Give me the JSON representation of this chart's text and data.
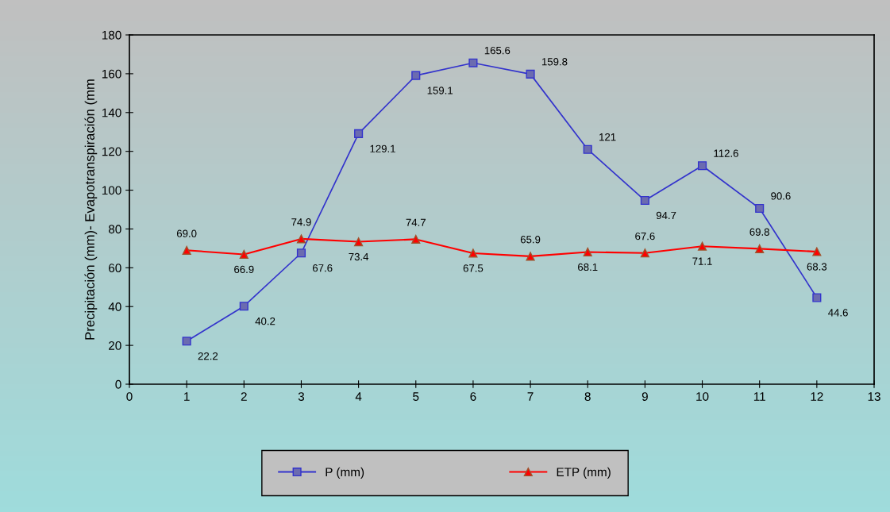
{
  "chart_data": {
    "type": "line",
    "ylabel": "Precipitación (mm)- Evapotranspiración (mm",
    "x": [
      1,
      2,
      3,
      4,
      5,
      6,
      7,
      8,
      9,
      10,
      11,
      12
    ],
    "series": [
      {
        "name": "P (mm)",
        "color": "#3333cc",
        "marker": "square",
        "values": [
          22.2,
          40.2,
          67.6,
          129.1,
          159.1,
          165.6,
          159.8,
          121,
          94.7,
          112.6,
          90.6,
          44.6
        ],
        "value_labels": [
          "22.2",
          "40.2",
          "67.6",
          "129.1",
          "159.1",
          "165.6",
          "159.8",
          "121",
          "94.7",
          "112.6",
          "90.6",
          "44.6"
        ]
      },
      {
        "name": "ETP (mm)",
        "color": "#ff0000",
        "marker": "triangle",
        "values": [
          69.0,
          66.9,
          74.9,
          73.4,
          74.7,
          67.5,
          65.9,
          68.1,
          67.6,
          71.1,
          69.8,
          68.3
        ],
        "value_labels": [
          "69.0",
          "66.9",
          "74.9",
          "73.4",
          "74.7",
          "67.5",
          "65.9",
          "68.1",
          "67.6",
          "71.1",
          "69.8",
          "68.3"
        ]
      }
    ],
    "xlim": [
      0,
      13
    ],
    "xticks": [
      0,
      1,
      2,
      3,
      4,
      5,
      6,
      7,
      8,
      9,
      10,
      11,
      12,
      13
    ],
    "ylim": [
      0,
      180
    ],
    "yticks": [
      0,
      20,
      40,
      60,
      80,
      100,
      120,
      140,
      160,
      180
    ],
    "grid": false,
    "legend": "bottom",
    "line_style": "solid"
  }
}
